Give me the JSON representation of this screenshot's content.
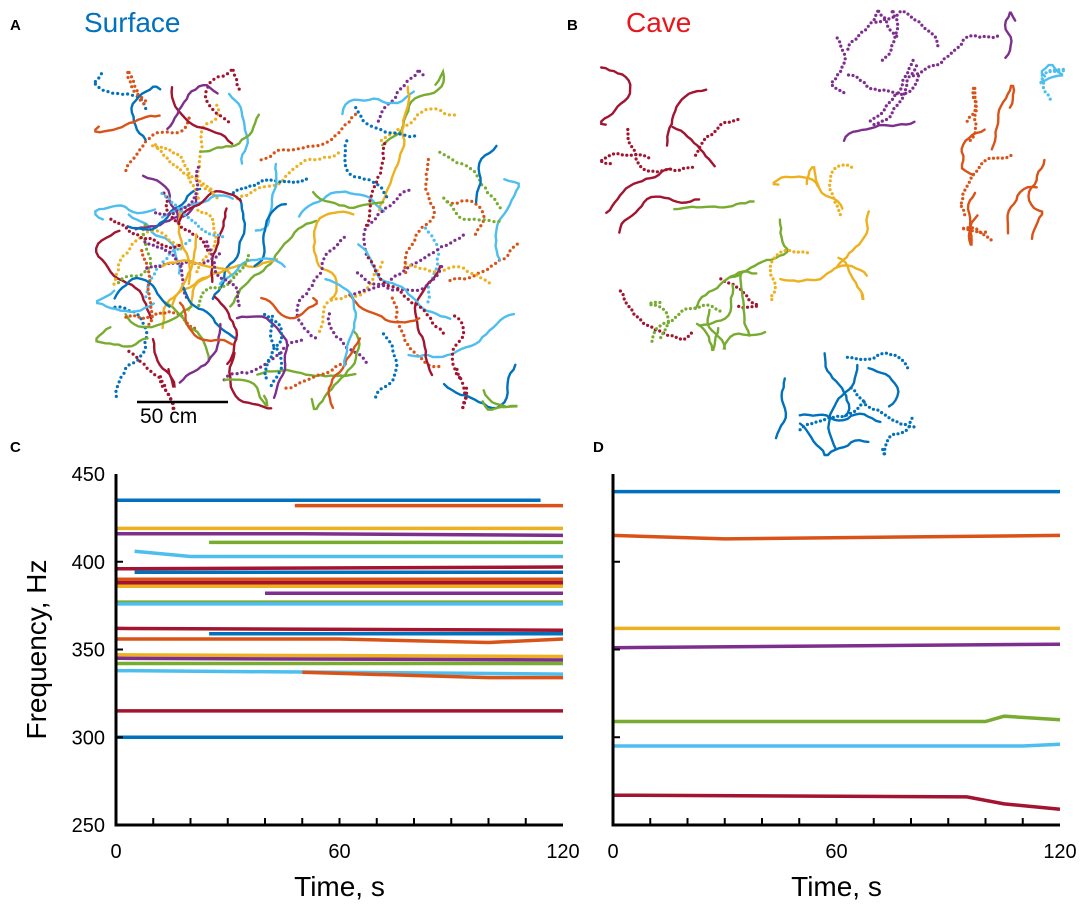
{
  "colors": {
    "blue": "#0072BD",
    "orange": "#D95319",
    "yellow": "#EDB120",
    "purple": "#7E2F8E",
    "green": "#77AC30",
    "cyan": "#4DBEEE",
    "red": "#A2142F",
    "axis": "#000000",
    "surface_title": "#0072BD",
    "cave_title": "#E8161B"
  },
  "panels": {
    "A": {
      "label": "A",
      "title": "Surface",
      "scalebar_label": "50 cm"
    },
    "B": {
      "label": "B",
      "title": "Cave"
    },
    "C": {
      "label": "C"
    },
    "D": {
      "label": "D"
    }
  },
  "chart_data": [
    {
      "panel": "A",
      "type": "scatter",
      "title": "Surface",
      "scale_bar": "50 cm",
      "description_of_content": "tracked fish positions, many overlapping colored trajectories",
      "series_colors": [
        "blue",
        "orange",
        "yellow",
        "purple",
        "green",
        "cyan",
        "red"
      ]
    },
    {
      "panel": "B",
      "type": "scatter",
      "title": "Cave",
      "series_colors": [
        "blue",
        "orange",
        "yellow",
        "purple",
        "green",
        "cyan",
        "red"
      ]
    },
    {
      "panel": "C",
      "type": "line",
      "xlabel": "Time, s",
      "ylabel": "Frequency, Hz",
      "xlim": [
        0,
        120
      ],
      "ylim": [
        250,
        450
      ],
      "xticks": [
        0,
        60,
        120
      ],
      "yticks": [
        250,
        300,
        350,
        400,
        450
      ],
      "series": [
        {
          "color": "blue",
          "x": [
            0,
            114
          ],
          "y": [
            435,
            435
          ]
        },
        {
          "color": "orange",
          "x": [
            48,
            120
          ],
          "y": [
            432,
            432
          ]
        },
        {
          "color": "yellow",
          "x": [
            0,
            120
          ],
          "y": [
            419,
            419
          ]
        },
        {
          "color": "purple",
          "x": [
            0,
            50,
            120
          ],
          "y": [
            416,
            416,
            415
          ]
        },
        {
          "color": "green",
          "x": [
            25,
            120
          ],
          "y": [
            411,
            411
          ]
        },
        {
          "color": "cyan",
          "x": [
            5,
            20,
            120
          ],
          "y": [
            406,
            403,
            403
          ]
        },
        {
          "color": "red",
          "x": [
            0,
            120
          ],
          "y": [
            396,
            397
          ]
        },
        {
          "color": "blue",
          "x": [
            5,
            120
          ],
          "y": [
            394,
            394
          ]
        },
        {
          "color": "orange",
          "x": [
            0,
            120
          ],
          "y": [
            390,
            390
          ]
        },
        {
          "color": "red",
          "x": [
            0,
            120
          ],
          "y": [
            388,
            388
          ]
        },
        {
          "color": "yellow",
          "x": [
            0,
            120
          ],
          "y": [
            386,
            386
          ]
        },
        {
          "color": "purple",
          "x": [
            40,
            120
          ],
          "y": [
            382,
            382
          ]
        },
        {
          "color": "green",
          "x": [
            0,
            120
          ],
          "y": [
            377,
            377
          ]
        },
        {
          "color": "cyan",
          "x": [
            0,
            120
          ],
          "y": [
            376,
            376
          ]
        },
        {
          "color": "red",
          "x": [
            0,
            120
          ],
          "y": [
            362,
            361
          ]
        },
        {
          "color": "blue",
          "x": [
            25,
            120
          ],
          "y": [
            359,
            359
          ]
        },
        {
          "color": "orange",
          "x": [
            0,
            60,
            100,
            120
          ],
          "y": [
            356,
            356,
            354,
            356
          ]
        },
        {
          "color": "yellow",
          "x": [
            0,
            120
          ],
          "y": [
            347,
            346
          ]
        },
        {
          "color": "purple",
          "x": [
            0,
            120
          ],
          "y": [
            345,
            344
          ]
        },
        {
          "color": "green",
          "x": [
            0,
            120
          ],
          "y": [
            342,
            342
          ]
        },
        {
          "color": "cyan",
          "x": [
            0,
            120
          ],
          "y": [
            338,
            336
          ]
        },
        {
          "color": "orange",
          "x": [
            50,
            100,
            120
          ],
          "y": [
            337,
            334,
            334
          ]
        },
        {
          "color": "red",
          "x": [
            0,
            120
          ],
          "y": [
            315,
            315
          ]
        },
        {
          "color": "blue",
          "x": [
            0,
            120
          ],
          "y": [
            300,
            300
          ]
        }
      ]
    },
    {
      "panel": "D",
      "type": "line",
      "xlabel": "Time, s",
      "xlim": [
        0,
        120
      ],
      "ylim": [
        250,
        450
      ],
      "xticks": [
        0,
        60,
        120
      ],
      "series": [
        {
          "color": "blue",
          "x": [
            0,
            60,
            120
          ],
          "y": [
            440,
            440,
            440
          ]
        },
        {
          "color": "orange",
          "x": [
            0,
            30,
            120
          ],
          "y": [
            415,
            413,
            415
          ]
        },
        {
          "color": "yellow",
          "x": [
            0,
            120
          ],
          "y": [
            362,
            362
          ]
        },
        {
          "color": "purple",
          "x": [
            0,
            120
          ],
          "y": [
            351,
            353
          ]
        },
        {
          "color": "green",
          "x": [
            0,
            100,
            105,
            120
          ],
          "y": [
            309,
            309,
            312,
            310
          ]
        },
        {
          "color": "cyan",
          "x": [
            0,
            110,
            120
          ],
          "y": [
            295,
            295,
            296
          ]
        },
        {
          "color": "red",
          "x": [
            0,
            95,
            105,
            120
          ],
          "y": [
            267,
            266,
            262,
            259
          ]
        }
      ]
    }
  ]
}
